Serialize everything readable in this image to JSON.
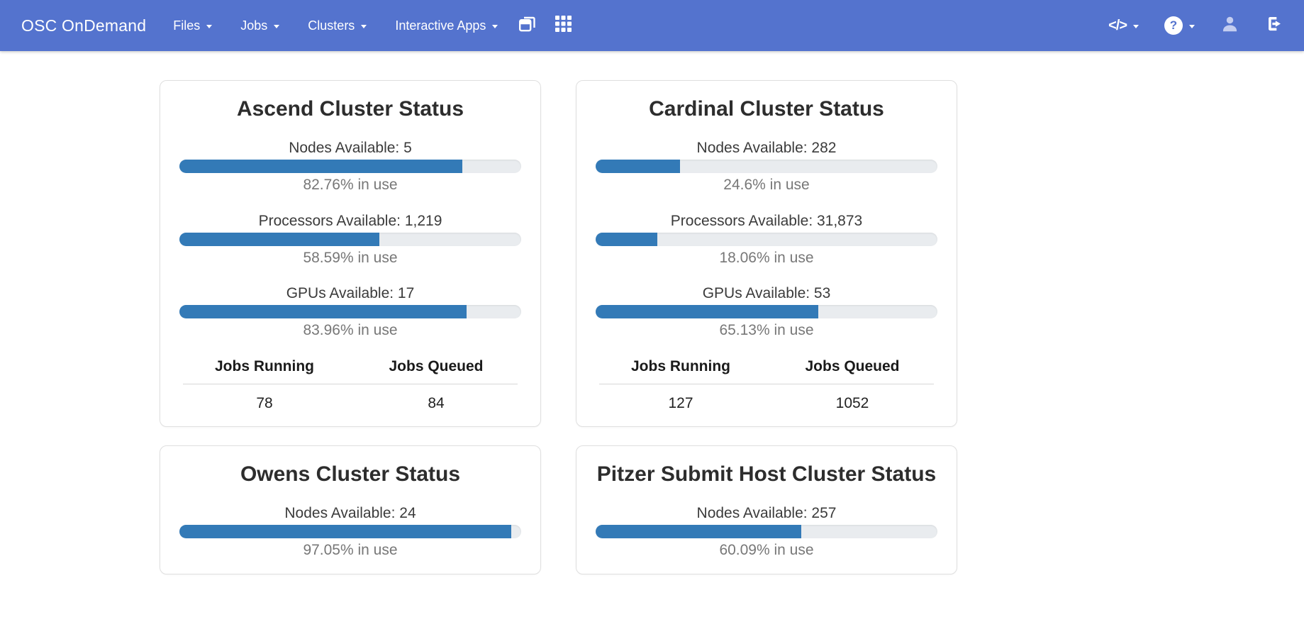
{
  "navbar": {
    "brand": "OSC OnDemand",
    "menus": [
      {
        "label": "Files"
      },
      {
        "label": "Jobs"
      },
      {
        "label": "Clusters"
      },
      {
        "label": "Interactive Apps"
      }
    ],
    "develop_glyph": "</>",
    "help_glyph": "?",
    "icons": {
      "window_restore": "window-restore-icon",
      "app_grid": "app-grid-icon",
      "develop": "code-icon",
      "help": "question-circle-icon",
      "user": "person-icon",
      "logout": "sign-out-icon"
    }
  },
  "colors": {
    "navbar_background": "#5473ce",
    "progress_fill": "#337ab7",
    "progress_track": "#e9ecef"
  },
  "cards": [
    {
      "title": "Ascend Cluster Status",
      "metrics": [
        {
          "label": "Nodes Available: 5",
          "percent": 82.76,
          "percent_label": "82.76% in use"
        },
        {
          "label": "Processors Available: 1,219",
          "percent": 58.59,
          "percent_label": "58.59% in use"
        },
        {
          "label": "GPUs Available: 17",
          "percent": 83.96,
          "percent_label": "83.96% in use"
        }
      ],
      "jobs": {
        "running_header": "Jobs Running",
        "queued_header": "Jobs Queued",
        "running": "78",
        "queued": "84"
      }
    },
    {
      "title": "Cardinal Cluster Status",
      "metrics": [
        {
          "label": "Nodes Available: 282",
          "percent": 24.6,
          "percent_label": "24.6% in use"
        },
        {
          "label": "Processors Available: 31,873",
          "percent": 18.06,
          "percent_label": "18.06% in use"
        },
        {
          "label": "GPUs Available: 53",
          "percent": 65.13,
          "percent_label": "65.13% in use"
        }
      ],
      "jobs": {
        "running_header": "Jobs Running",
        "queued_header": "Jobs Queued",
        "running": "127",
        "queued": "1052"
      }
    },
    {
      "title": "Owens Cluster Status",
      "metrics": [
        {
          "label": "Nodes Available: 24",
          "percent": 97.05,
          "percent_label": "97.05% in use"
        }
      ]
    },
    {
      "title": "Pitzer Submit Host Cluster Status",
      "metrics": [
        {
          "label": "Nodes Available: 257",
          "percent": 60.09,
          "percent_label": "60.09% in use"
        }
      ]
    }
  ]
}
